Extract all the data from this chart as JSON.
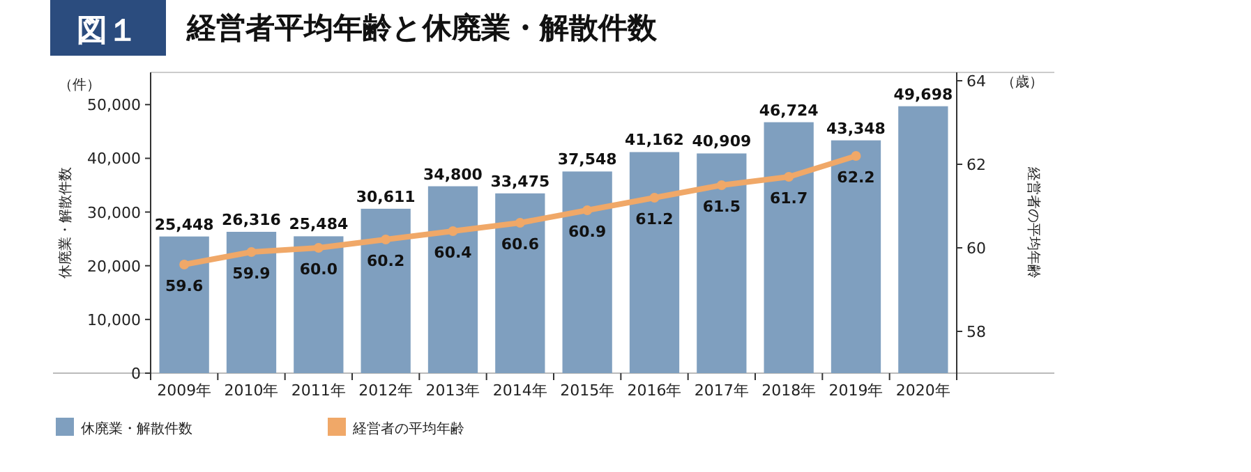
{
  "chart_data": {
    "type": "bar",
    "title": "経営者平均年齢と休廃業・解散件数",
    "annotations": [
      "図１",
      "（件）",
      "（歳）"
    ],
    "ylabel": "休廃業・解散件数",
    "y2label": "経営者の平均年齢",
    "categories": [
      "2009年",
      "2010年",
      "2011年",
      "2012年",
      "2013年",
      "2014年",
      "2015年",
      "2016年",
      "2017年",
      "2018年",
      "2019年",
      "2020年"
    ],
    "series": [
      {
        "name": "休廃業・解散件数",
        "color": "#7f9fbf",
        "values": [
          25448,
          26316,
          25484,
          30611,
          34800,
          33475,
          37548,
          41162,
          40909,
          46724,
          43348,
          49698
        ],
        "value_labels": [
          "25,448",
          "26,316",
          "25,484",
          "30,611",
          "34,800",
          "33,475",
          "37,548",
          "41,162",
          "40,909",
          "46,724",
          "43,348",
          "49,698"
        ]
      },
      {
        "name": "経営者の平均年齢",
        "type": "line",
        "axis": "y2",
        "color": "#f0a868",
        "values": [
          59.6,
          59.9,
          60.0,
          60.2,
          60.4,
          60.6,
          60.9,
          61.2,
          61.5,
          61.7,
          62.2,
          null
        ],
        "value_labels": [
          "59.6",
          "59.9",
          "60.0",
          "60.2",
          "60.4",
          "60.6",
          "60.9",
          "61.2",
          "61.5",
          "61.7",
          "62.2",
          null
        ]
      }
    ],
    "ylim": [
      0,
      56000
    ],
    "yticks": [
      {
        "value": 0,
        "label": "0"
      },
      {
        "value": 10000,
        "label": "10,000"
      },
      {
        "value": 20000,
        "label": "20,000"
      },
      {
        "value": 30000,
        "label": "30,000"
      },
      {
        "value": 40000,
        "label": "40,000"
      },
      {
        "value": 50000,
        "label": "50,000"
      }
    ],
    "y2lim": [
      57,
      64.2
    ],
    "y2ticks": [
      58,
      60,
      62,
      64
    ],
    "marker": "circle",
    "legend": "bottom left",
    "grid": false
  }
}
